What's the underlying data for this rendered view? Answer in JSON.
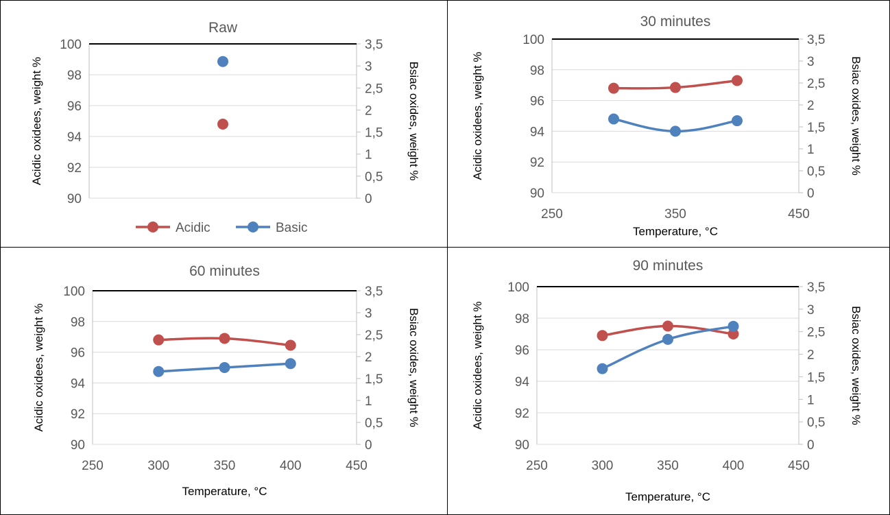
{
  "chart_data": [
    {
      "type": "scatter",
      "title": "Raw",
      "x_axis": null,
      "y_left": {
        "label": "Acidic oxidees, weight %",
        "min": 90,
        "max": 100,
        "step": 2,
        "ticks": [
          "90",
          "92",
          "94",
          "96",
          "98",
          "100"
        ]
      },
      "y_right": {
        "label": "Bsiac oxides, weight %",
        "min": 0,
        "max": 3.5,
        "step": 0.5,
        "ticks": [
          "0",
          "0,5",
          "1",
          "1,5",
          "2",
          "2,5",
          "3",
          "3,5"
        ]
      },
      "grid": true,
      "legend": {
        "position": "bottom",
        "entries": [
          "Acidic",
          "Basic"
        ]
      },
      "series": [
        {
          "name": "Acidic",
          "axis": "left",
          "color": "#c0504d",
          "x": [
            null
          ],
          "y": [
            94.8
          ]
        },
        {
          "name": "Basic",
          "axis": "right",
          "color": "#4f81bd",
          "x": [
            null
          ],
          "y": [
            3.1
          ]
        }
      ]
    },
    {
      "type": "line",
      "title": "30 minutes",
      "x_axis": {
        "label": "Temperature, °C",
        "min": 250,
        "max": 450,
        "ticks": [
          "250",
          "350",
          "450"
        ],
        "tick_values": [
          250,
          350,
          450
        ]
      },
      "y_left": {
        "label": "Acidic oxidees, weight %",
        "min": 90,
        "max": 100,
        "step": 2,
        "ticks": [
          "90",
          "92",
          "94",
          "96",
          "98",
          "100"
        ]
      },
      "y_right": {
        "label": "Bsiac oxides, weight %",
        "min": 0,
        "max": 3.5,
        "step": 0.5,
        "ticks": [
          "0",
          "0,5",
          "1",
          "1,5",
          "2",
          "2,5",
          "3",
          "3,5"
        ]
      },
      "grid": true,
      "series": [
        {
          "name": "Acidic",
          "axis": "left",
          "color": "#c0504d",
          "x": [
            300,
            350,
            400
          ],
          "y": [
            96.8,
            96.85,
            97.3
          ]
        },
        {
          "name": "Basic",
          "axis": "right",
          "color": "#4f81bd",
          "x": [
            300,
            350,
            400
          ],
          "y": [
            1.68,
            1.4,
            1.64
          ]
        }
      ]
    },
    {
      "type": "line",
      "title": "60 minutes",
      "x_axis": {
        "label": "Temperature, °C",
        "min": 250,
        "max": 450,
        "ticks": [
          "250",
          "300",
          "350",
          "400",
          "450"
        ],
        "tick_values": [
          250,
          300,
          350,
          400,
          450
        ]
      },
      "y_left": {
        "label": "Acidic oxidees, weight %",
        "min": 90,
        "max": 100,
        "step": 2,
        "ticks": [
          "90",
          "92",
          "94",
          "96",
          "98",
          "100"
        ]
      },
      "y_right": {
        "label": "Bsiac oxides, weight %",
        "min": 0,
        "max": 3.5,
        "step": 0.5,
        "ticks": [
          "0",
          "0,5",
          "1",
          "1,5",
          "2",
          "2,5",
          "3",
          "3,5"
        ]
      },
      "grid": true,
      "series": [
        {
          "name": "Acidic",
          "axis": "left",
          "color": "#c0504d",
          "x": [
            300,
            350,
            400
          ],
          "y": [
            96.8,
            96.9,
            96.45
          ]
        },
        {
          "name": "Basic",
          "axis": "right",
          "color": "#4f81bd",
          "x": [
            300,
            350,
            400
          ],
          "y": [
            1.66,
            1.75,
            1.84
          ]
        }
      ]
    },
    {
      "type": "line",
      "title": "90 minutes",
      "x_axis": {
        "label": "Temperature, °C",
        "min": 250,
        "max": 450,
        "ticks": [
          "250",
          "300",
          "350",
          "400",
          "450"
        ],
        "tick_values": [
          250,
          300,
          350,
          400,
          450
        ]
      },
      "y_left": {
        "label": "Acidic oxidees, weight %",
        "min": 90,
        "max": 100,
        "step": 2,
        "ticks": [
          "90",
          "92",
          "94",
          "96",
          "98",
          "100"
        ]
      },
      "y_right": {
        "label": "Bsiac oxides, weight %",
        "min": 0,
        "max": 3.5,
        "step": 0.5,
        "ticks": [
          "0",
          "0,5",
          "1",
          "1,5",
          "2",
          "2,5",
          "3",
          "3,5"
        ]
      },
      "grid": true,
      "series": [
        {
          "name": "Acidic",
          "axis": "left",
          "color": "#c0504d",
          "x": [
            300,
            350,
            400
          ],
          "y": [
            96.9,
            97.5,
            97.0
          ]
        },
        {
          "name": "Basic",
          "axis": "right",
          "color": "#4f81bd",
          "x": [
            300,
            350,
            400
          ],
          "y": [
            1.68,
            2.33,
            2.62
          ]
        }
      ]
    }
  ]
}
